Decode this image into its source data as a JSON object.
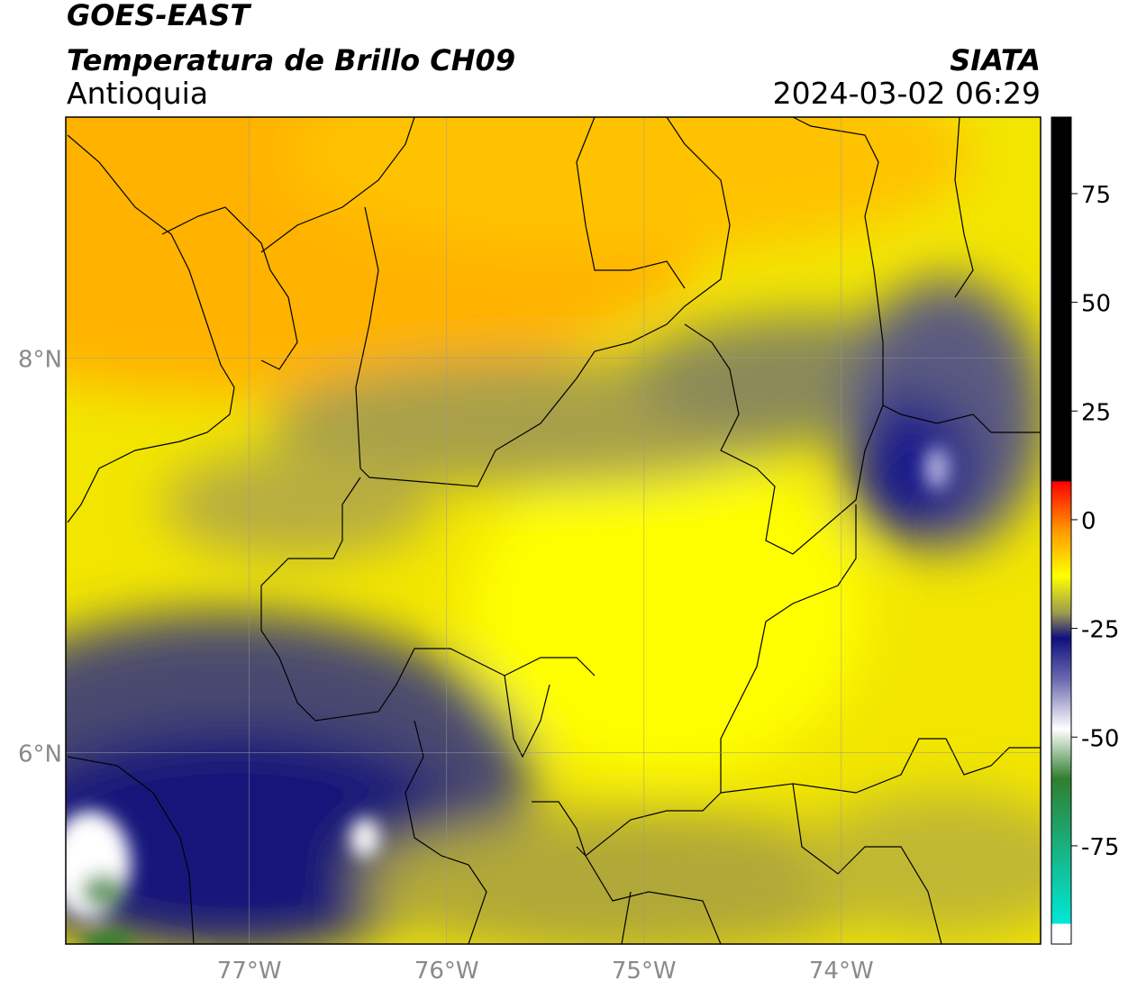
{
  "header": {
    "title": "GOES-EAST",
    "subtitle": "Temperatura de Brillo CH09",
    "region": "Antioquia",
    "agency": "SIATA",
    "timestamp": "2024-03-02 06:29"
  },
  "map": {
    "lonlim": [
      -77.93,
      -72.99
    ],
    "latlim": [
      5.03,
      9.22
    ],
    "lonticks": [
      {
        "value": -77,
        "label": "77°W"
      },
      {
        "value": -76,
        "label": "76°W"
      },
      {
        "value": -75,
        "label": "75°W"
      },
      {
        "value": -74,
        "label": "74°W"
      }
    ],
    "latticks": [
      {
        "value": 8,
        "label": "8°N"
      },
      {
        "value": 6,
        "label": "6°N"
      }
    ]
  },
  "colorbar": {
    "lim": [
      -97.6,
      92.6
    ],
    "ticks": [
      75,
      50,
      25,
      0,
      -25,
      -50,
      -75
    ]
  }
}
